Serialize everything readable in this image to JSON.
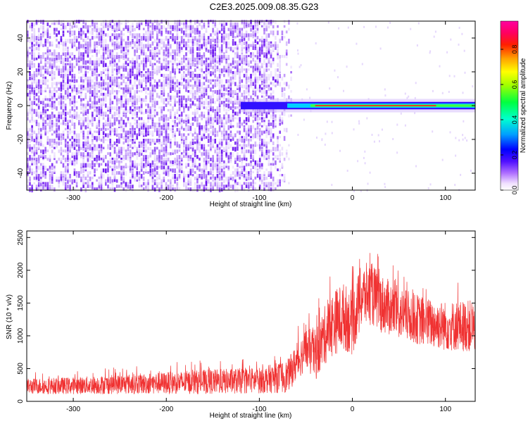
{
  "title": "C2E3.2025.009.08.35.G23",
  "chart_data": [
    {
      "type": "heatmap",
      "xlabel": "Height of straight line (km)",
      "ylabel": "Frequency (Hz)",
      "xlim": [
        -350,
        132
      ],
      "ylim": [
        -50,
        50
      ],
      "x_ticks": [
        -300,
        -200,
        -100,
        0,
        100
      ],
      "y_ticks": [
        -40,
        -20,
        0,
        20,
        40
      ],
      "colorbar": {
        "label": "Normalized spectral amplitude",
        "range": [
          0,
          0.96
        ],
        "ticks": [
          0.0,
          0.2,
          0.4,
          0.6,
          0.8
        ]
      },
      "description_points": {
        "noise_region_x": [
          -350,
          -90
        ],
        "signal_start_x": -120,
        "signal_frequency_hz": 0
      }
    },
    {
      "type": "line",
      "xlabel": "Height of straight line (km)",
      "ylabel": "SNR (10 * v/v)",
      "xlim": [
        -350,
        132
      ],
      "ylim": [
        0,
        2600
      ],
      "x_ticks": [
        -300,
        -200,
        -100,
        0,
        100
      ],
      "y_ticks": [
        0,
        500,
        1000,
        1500,
        2000,
        2500
      ],
      "color": "#f03232",
      "envelope": {
        "x": [
          -350,
          -300,
          -250,
          -200,
          -150,
          -100,
          -70,
          -50,
          -40,
          -30,
          -20,
          -10,
          0,
          10,
          20,
          30,
          50,
          80,
          100,
          132
        ],
        "mean": [
          230,
          240,
          260,
          280,
          300,
          320,
          380,
          800,
          700,
          1000,
          1200,
          1300,
          1200,
          1600,
          1650,
          1500,
          1350,
          1200,
          1150,
          1150
        ],
        "amp": [
          120,
          130,
          150,
          170,
          190,
          200,
          250,
          320,
          400,
          450,
          500,
          520,
          500,
          500,
          480,
          450,
          400,
          380,
          380,
          400
        ]
      }
    }
  ]
}
